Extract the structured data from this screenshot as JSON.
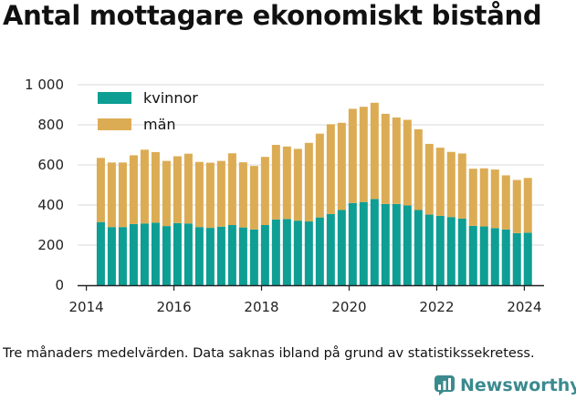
{
  "title": "Antal mottagare ekonomiskt bistånd",
  "footnote": "Tre månaders medelvärden. Data saknas ibland på grund av statistikssekretess.",
  "logo": {
    "text": "Newsworthy"
  },
  "colors": {
    "kvinnor": "#0e9e94",
    "man": "#dcac54",
    "grid": "#d9d9d9",
    "axis": "#222222",
    "brand": "#3b8a8e"
  },
  "chart_data": {
    "type": "bar",
    "stacked": true,
    "title": "Antal mottagare ekonomiskt bistånd",
    "xlabel": "",
    "ylabel": "",
    "ylim": [
      0,
      1000
    ],
    "yticks": [
      0,
      200,
      400,
      600,
      800,
      1000
    ],
    "ytick_labels": [
      "0",
      "200",
      "400",
      "600",
      "800",
      "1 000"
    ],
    "xlim": [
      2013.8,
      2024.45
    ],
    "xticks": [
      2014,
      2016,
      2018,
      2020,
      2022,
      2024
    ],
    "xtick_labels": [
      "2014",
      "2016",
      "2018",
      "2020",
      "2022",
      "2024"
    ],
    "grid": true,
    "legend_position": "top-left",
    "x": [
      2014.33,
      2014.58,
      2014.83,
      2015.08,
      2015.33,
      2015.58,
      2015.83,
      2016.08,
      2016.33,
      2016.58,
      2016.83,
      2017.08,
      2017.33,
      2017.58,
      2017.83,
      2018.08,
      2018.33,
      2018.58,
      2018.83,
      2019.08,
      2019.33,
      2019.58,
      2019.83,
      2020.08,
      2020.33,
      2020.58,
      2020.83,
      2021.08,
      2021.33,
      2021.58,
      2021.83,
      2022.08,
      2022.33,
      2022.58,
      2022.83,
      2023.08,
      2023.33,
      2023.58,
      2023.83,
      2024.08
    ],
    "series": [
      {
        "name": "kvinnor",
        "color": "#0e9e94",
        "values": [
          315,
          290,
          290,
          305,
          308,
          312,
          295,
          310,
          308,
          290,
          286,
          292,
          300,
          288,
          278,
          300,
          328,
          330,
          322,
          318,
          338,
          355,
          375,
          410,
          415,
          430,
          405,
          405,
          398,
          375,
          352,
          346,
          340,
          332,
          296,
          293,
          285,
          278,
          260,
          262
        ]
      },
      {
        "name": "män",
        "color": "#dcac54",
        "values": [
          320,
          322,
          322,
          343,
          368,
          352,
          325,
          333,
          348,
          325,
          325,
          328,
          358,
          325,
          317,
          340,
          372,
          362,
          358,
          392,
          418,
          448,
          435,
          470,
          475,
          480,
          450,
          432,
          427,
          403,
          353,
          340,
          325,
          325,
          285,
          290,
          292,
          270,
          265,
          273
        ]
      }
    ]
  }
}
